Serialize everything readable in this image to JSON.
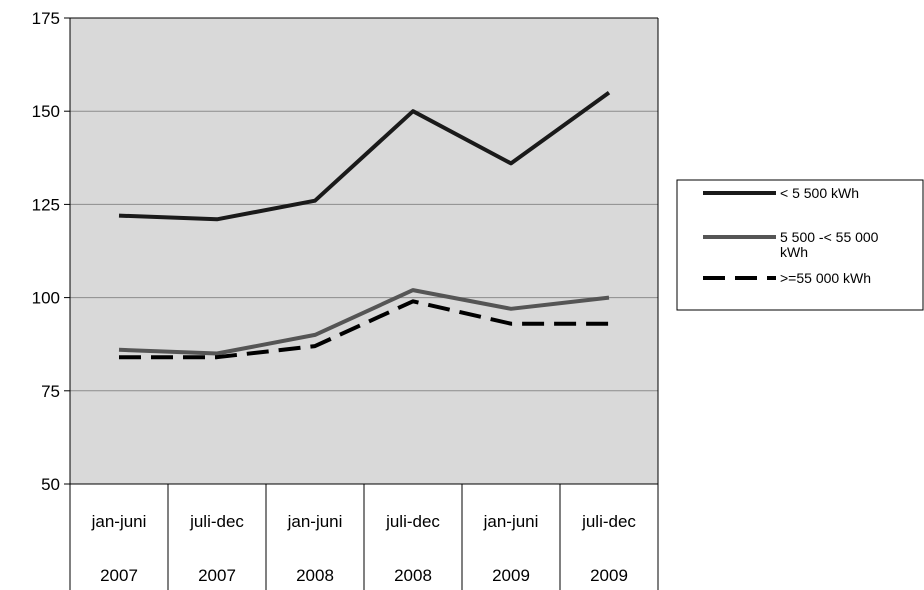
{
  "chart_data": {
    "type": "line",
    "categories": [
      [
        "jan-juni",
        "2007"
      ],
      [
        "juli-dec",
        "2007"
      ],
      [
        "jan-juni",
        "2008"
      ],
      [
        "juli-dec",
        "2008"
      ],
      [
        "jan-juni",
        "2009"
      ],
      [
        "juli-dec",
        "2009"
      ]
    ],
    "ylim": [
      50,
      175
    ],
    "yticks": [
      "50",
      "75",
      "100",
      "125",
      "150",
      "175"
    ],
    "grid": true,
    "legend_position": "right",
    "series": [
      {
        "name": "< 5 500 kWh",
        "values": [
          122,
          121,
          126,
          150,
          136,
          155
        ],
        "color": "#1a1a1a",
        "style": "solid"
      },
      {
        "name": "5 500 -< 55 000 kWh",
        "values": [
          86,
          85,
          90,
          102,
          97,
          100
        ],
        "color": "#555555",
        "style": "solid"
      },
      {
        "name": ">=55 000 kWh",
        "values": [
          84,
          84,
          87,
          99,
          93,
          93
        ],
        "color": "#000000",
        "style": "dashed"
      }
    ],
    "plot_background": "#d9d9d9"
  }
}
